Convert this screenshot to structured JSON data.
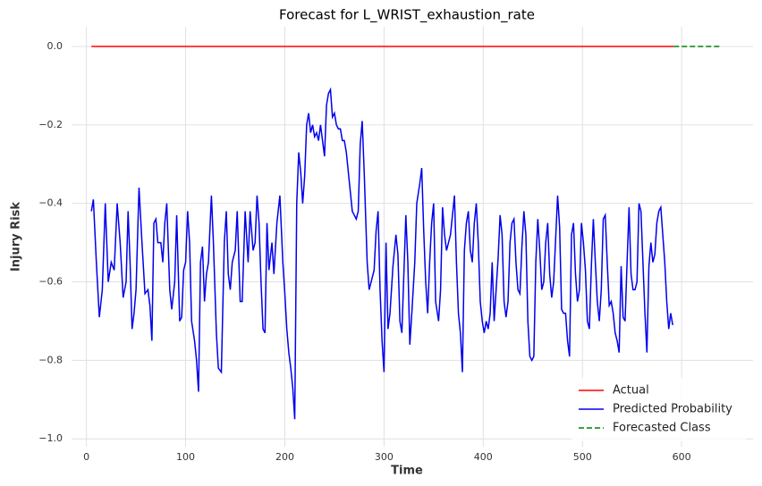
{
  "chart_data": {
    "type": "line",
    "title": "Forecast for L_WRIST_exhaustion_rate",
    "x_label": "Time",
    "y_label": "Injury Risk",
    "xlim": [
      -15,
      672
    ],
    "ylim": [
      -1.02,
      0.05
    ],
    "xticks": [
      0,
      100,
      200,
      300,
      400,
      500,
      600
    ],
    "yticks": [
      {
        "value": 0.0,
        "label": "0.0"
      },
      {
        "value": -0.2,
        "label": "−0.2"
      },
      {
        "value": -0.4,
        "label": "−0.4"
      },
      {
        "value": -0.6,
        "label": "−0.6"
      },
      {
        "value": -0.8,
        "label": "−0.8"
      },
      {
        "value": -1.0,
        "label": "−1.0"
      }
    ],
    "grid": true,
    "legend": "lower right",
    "series": [
      {
        "name": "Actual",
        "color": "#ff0000",
        "linestyle": "solid",
        "x": [
          5,
          592
        ],
        "values": [
          0.0,
          0.0
        ]
      },
      {
        "name": "Predicted Probability",
        "color": "#0000ee",
        "linestyle": "solid",
        "x": [
          5,
          7,
          10,
          13,
          16,
          19,
          22,
          25,
          28,
          31,
          34,
          37,
          40,
          42,
          44,
          46,
          48,
          50,
          53,
          56,
          59,
          62,
          64,
          66,
          68,
          70,
          72,
          75,
          77,
          79,
          81,
          84,
          86,
          89,
          91,
          94,
          96,
          98,
          100,
          102,
          104,
          106,
          109,
          111,
          113,
          115,
          117,
          119,
          121,
          123,
          126,
          128,
          131,
          133,
          136,
          139,
          141,
          143,
          145,
          147,
          150,
          152,
          155,
          157,
          160,
          163,
          165,
          168,
          170,
          172,
          174,
          176,
          178,
          180,
          182,
          184,
          187,
          189,
          192,
          195,
          198,
          200,
          202,
          204,
          206,
          208,
          210,
          212,
          214,
          216,
          218,
          220,
          222,
          224,
          226,
          228,
          230,
          232,
          234,
          236,
          238,
          240,
          242,
          244,
          246,
          248,
          250,
          252,
          254,
          256,
          258,
          260,
          262,
          264,
          266,
          268,
          270,
          272,
          274,
          276,
          278,
          280,
          283,
          285,
          287,
          290,
          292,
          294,
          296,
          298,
          300,
          302,
          304,
          306,
          309,
          312,
          314,
          316,
          318,
          320,
          322,
          324,
          326,
          328,
          331,
          333,
          336,
          338,
          340,
          342,
          344,
          346,
          348,
          350,
          352,
          355,
          357,
          359,
          361,
          363,
          365,
          367,
          369,
          371,
          373,
          375,
          377,
          379,
          381,
          383,
          385,
          387,
          389,
          391,
          393,
          395,
          397,
          399,
          401,
          403,
          405,
          407,
          409,
          411,
          413,
          415,
          417,
          419,
          421,
          423,
          425,
          427,
          429,
          431,
          433,
          435,
          437,
          439,
          441,
          443,
          445,
          447,
          449,
          451,
          453,
          455,
          457,
          459,
          461,
          463,
          465,
          467,
          469,
          471,
          473,
          475,
          477,
          479,
          481,
          483,
          485,
          487,
          489,
          491,
          493,
          495,
          497,
          499,
          501,
          503,
          505,
          507,
          509,
          511,
          513,
          515,
          517,
          519,
          521,
          523,
          525,
          527,
          529,
          531,
          533,
          535,
          537,
          539,
          541,
          543,
          545,
          547,
          549,
          551,
          553,
          555,
          557,
          559,
          561,
          563,
          565,
          567,
          569,
          571,
          573,
          575,
          577,
          579,
          581,
          583,
          585,
          587,
          589,
          591
        ],
        "values": [
          -0.42,
          -0.39,
          -0.55,
          -0.69,
          -0.62,
          -0.4,
          -0.6,
          -0.55,
          -0.57,
          -0.4,
          -0.5,
          -0.64,
          -0.6,
          -0.42,
          -0.55,
          -0.72,
          -0.68,
          -0.62,
          -0.36,
          -0.5,
          -0.63,
          -0.62,
          -0.66,
          -0.75,
          -0.45,
          -0.44,
          -0.5,
          -0.5,
          -0.55,
          -0.45,
          -0.4,
          -0.62,
          -0.67,
          -0.6,
          -0.43,
          -0.7,
          -0.69,
          -0.57,
          -0.55,
          -0.42,
          -0.5,
          -0.7,
          -0.75,
          -0.8,
          -0.88,
          -0.55,
          -0.51,
          -0.65,
          -0.58,
          -0.55,
          -0.38,
          -0.5,
          -0.73,
          -0.82,
          -0.83,
          -0.5,
          -0.42,
          -0.58,
          -0.62,
          -0.55,
          -0.52,
          -0.42,
          -0.65,
          -0.65,
          -0.42,
          -0.55,
          -0.42,
          -0.52,
          -0.5,
          -0.38,
          -0.45,
          -0.6,
          -0.72,
          -0.73,
          -0.45,
          -0.57,
          -0.5,
          -0.58,
          -0.45,
          -0.38,
          -0.55,
          -0.63,
          -0.72,
          -0.78,
          -0.82,
          -0.87,
          -0.95,
          -0.4,
          -0.27,
          -0.32,
          -0.4,
          -0.33,
          -0.2,
          -0.17,
          -0.22,
          -0.2,
          -0.23,
          -0.22,
          -0.24,
          -0.2,
          -0.24,
          -0.28,
          -0.15,
          -0.12,
          -0.11,
          -0.18,
          -0.17,
          -0.2,
          -0.21,
          -0.21,
          -0.24,
          -0.24,
          -0.27,
          -0.32,
          -0.37,
          -0.42,
          -0.43,
          -0.44,
          -0.42,
          -0.25,
          -0.19,
          -0.32,
          -0.55,
          -0.62,
          -0.6,
          -0.57,
          -0.47,
          -0.42,
          -0.62,
          -0.75,
          -0.83,
          -0.5,
          -0.72,
          -0.68,
          -0.56,
          -0.48,
          -0.53,
          -0.7,
          -0.73,
          -0.58,
          -0.43,
          -0.55,
          -0.76,
          -0.68,
          -0.55,
          -0.4,
          -0.35,
          -0.31,
          -0.47,
          -0.6,
          -0.68,
          -0.55,
          -0.45,
          -0.4,
          -0.65,
          -0.7,
          -0.62,
          -0.41,
          -0.48,
          -0.52,
          -0.5,
          -0.48,
          -0.43,
          -0.38,
          -0.55,
          -0.68,
          -0.73,
          -0.83,
          -0.52,
          -0.45,
          -0.42,
          -0.52,
          -0.55,
          -0.45,
          -0.4,
          -0.5,
          -0.65,
          -0.7,
          -0.73,
          -0.7,
          -0.72,
          -0.68,
          -0.55,
          -0.7,
          -0.62,
          -0.54,
          -0.43,
          -0.48,
          -0.65,
          -0.69,
          -0.65,
          -0.5,
          -0.45,
          -0.44,
          -0.55,
          -0.62,
          -0.63,
          -0.51,
          -0.42,
          -0.48,
          -0.7,
          -0.79,
          -0.8,
          -0.79,
          -0.55,
          -0.44,
          -0.52,
          -0.62,
          -0.6,
          -0.5,
          -0.45,
          -0.58,
          -0.64,
          -0.6,
          -0.49,
          -0.38,
          -0.46,
          -0.67,
          -0.68,
          -0.68,
          -0.75,
          -0.79,
          -0.48,
          -0.45,
          -0.58,
          -0.65,
          -0.62,
          -0.45,
          -0.5,
          -0.57,
          -0.7,
          -0.72,
          -0.56,
          -0.44,
          -0.55,
          -0.65,
          -0.7,
          -0.62,
          -0.44,
          -0.43,
          -0.55,
          -0.66,
          -0.65,
          -0.68,
          -0.73,
          -0.75,
          -0.78,
          -0.56,
          -0.69,
          -0.7,
          -0.55,
          -0.41,
          -0.58,
          -0.62,
          -0.62,
          -0.6,
          -0.4,
          -0.42,
          -0.55,
          -0.68,
          -0.78,
          -0.56,
          -0.5,
          -0.55,
          -0.53,
          -0.45,
          -0.42,
          -0.41,
          -0.48,
          -0.55,
          -0.65,
          -0.72,
          -0.68,
          -0.71
        ]
      },
      {
        "name": "Forecasted Class",
        "color": "#008000",
        "linestyle": "dashed",
        "x": [
          592,
          640
        ],
        "values": [
          0.0,
          0.0
        ]
      }
    ]
  }
}
